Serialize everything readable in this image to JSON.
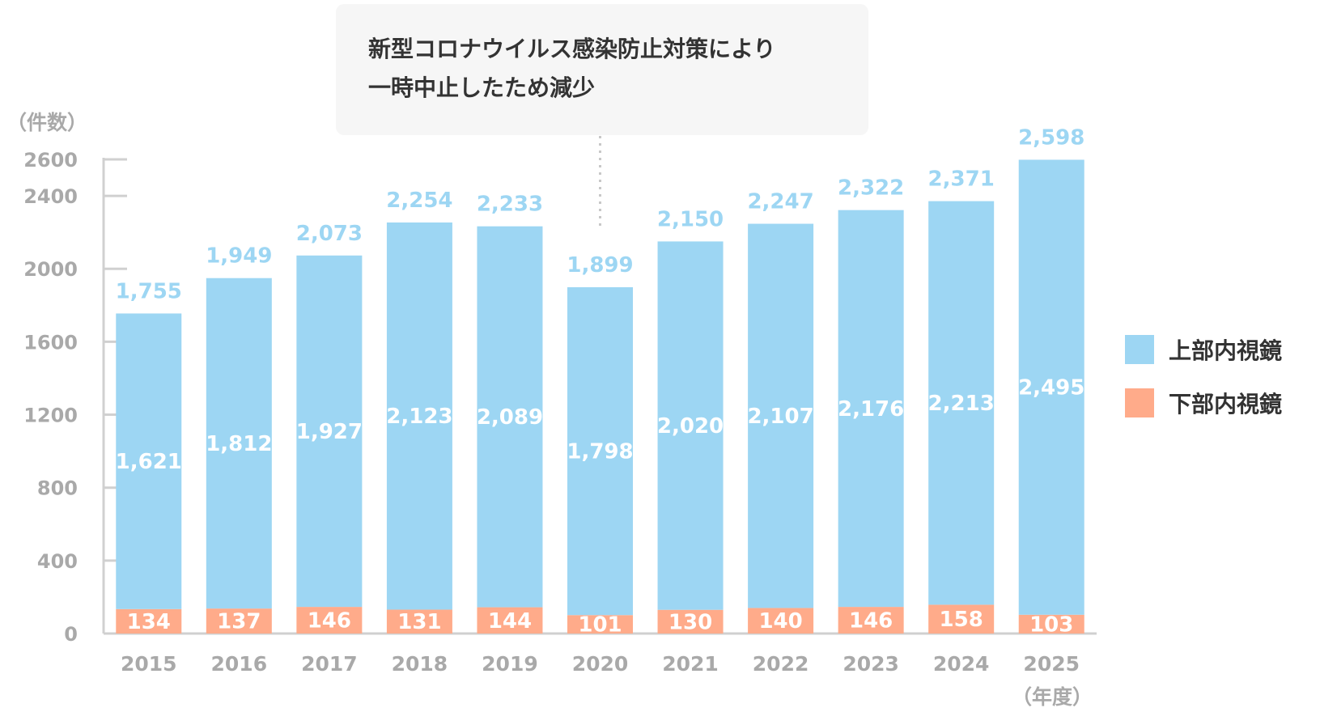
{
  "chart_data": {
    "type": "bar",
    "stacked": true,
    "categories": [
      "2015",
      "2016",
      "2017",
      "2018",
      "2019",
      "2020",
      "2021",
      "2022",
      "2023",
      "2024",
      "2025"
    ],
    "series": [
      {
        "name": "下部内視鏡",
        "color": "#ffab8a",
        "values": [
          134,
          137,
          146,
          131,
          144,
          101,
          130,
          140,
          146,
          158,
          103
        ]
      },
      {
        "name": "上部内視鏡",
        "color": "#9dd6f3",
        "values": [
          1621,
          1812,
          1927,
          2123,
          2089,
          1798,
          2020,
          2107,
          2176,
          2213,
          2495
        ]
      }
    ],
    "totals": [
      1755,
      1949,
      2073,
      2254,
      2233,
      1899,
      2150,
      2247,
      2322,
      2371,
      2598
    ],
    "total_labels": [
      "1,755",
      "1,949",
      "2,073",
      "2,254",
      "2,233",
      "1,899",
      "2,150",
      "2,247",
      "2,322",
      "2,371",
      "2,598"
    ],
    "upper_labels": [
      "1,621",
      "1,812",
      "1,927",
      "2,123",
      "2,089",
      "1,798",
      "2,020",
      "2,107",
      "2,176",
      "2,213",
      "2,495"
    ],
    "lower_labels": [
      "134",
      "137",
      "146",
      "131",
      "144",
      "101",
      "130",
      "140",
      "146",
      "158",
      "103"
    ],
    "ylim": [
      0,
      2600
    ],
    "y_ticks": [
      0,
      400,
      800,
      1200,
      1600,
      2000,
      2400,
      2600
    ],
    "ylabel": "（件数）",
    "xlabel": "（年度）",
    "legend_position": "right",
    "grid": false,
    "annotation": {
      "lines": [
        "新型コロナウイルス感染防止対策により",
        "一時中止したため減少"
      ],
      "target_category": "2020"
    },
    "colors": {
      "axis": "#d0d0d0",
      "tick_text": "#a9a9a9",
      "total_label": "#9dd6f3",
      "inner_label": "#ffffff",
      "callout_bg": "#f6f6f6"
    }
  }
}
